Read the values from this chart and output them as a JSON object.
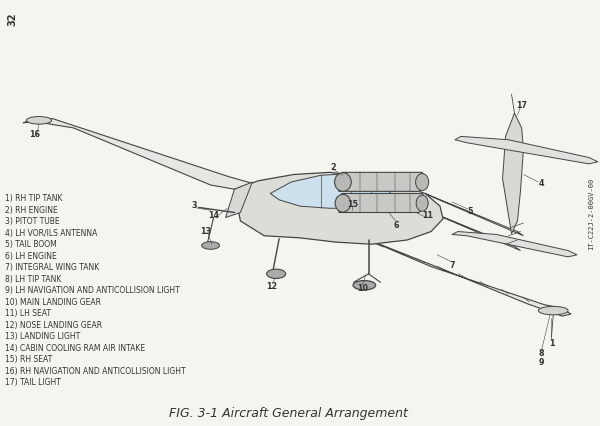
{
  "title": "FIG. 3-1 Aircraft General Arrangement",
  "page_number": "32",
  "doc_number": "1T-C22J-2-00GV-00",
  "background_color": "#f5f5f0",
  "line_color": "#444444",
  "text_color": "#333333",
  "labels": [
    "1) RH TIP TANK",
    "2) RH ENGINE",
    "3) PITOT TUBE",
    "4) LH VOR/ILS ANTENNA",
    "5) TAIL BOOM",
    "6) LH ENGINE",
    "7) INTEGRAL WING TANK",
    "8) LH TIP TANK",
    "9) LH NAVIGATION AND ANTICOLLISION LIGHT",
    "10) MAIN LANDING GEAR",
    "11) LH SEAT",
    "12) NOSE LANDING GEAR",
    "13) LANDING LIGHT",
    "14) CABIN COOLING RAM AIR INTAKE",
    "15) RH SEAT",
    "16) RH NAVIGATION AND ANTICOLLISION LIGHT",
    "17) TAIL LIGHT"
  ],
  "label_fontsize": 5.5,
  "fig_caption": "FIG. 3-1 Aircraft General Arrangement",
  "fig_caption_fontsize": 9
}
